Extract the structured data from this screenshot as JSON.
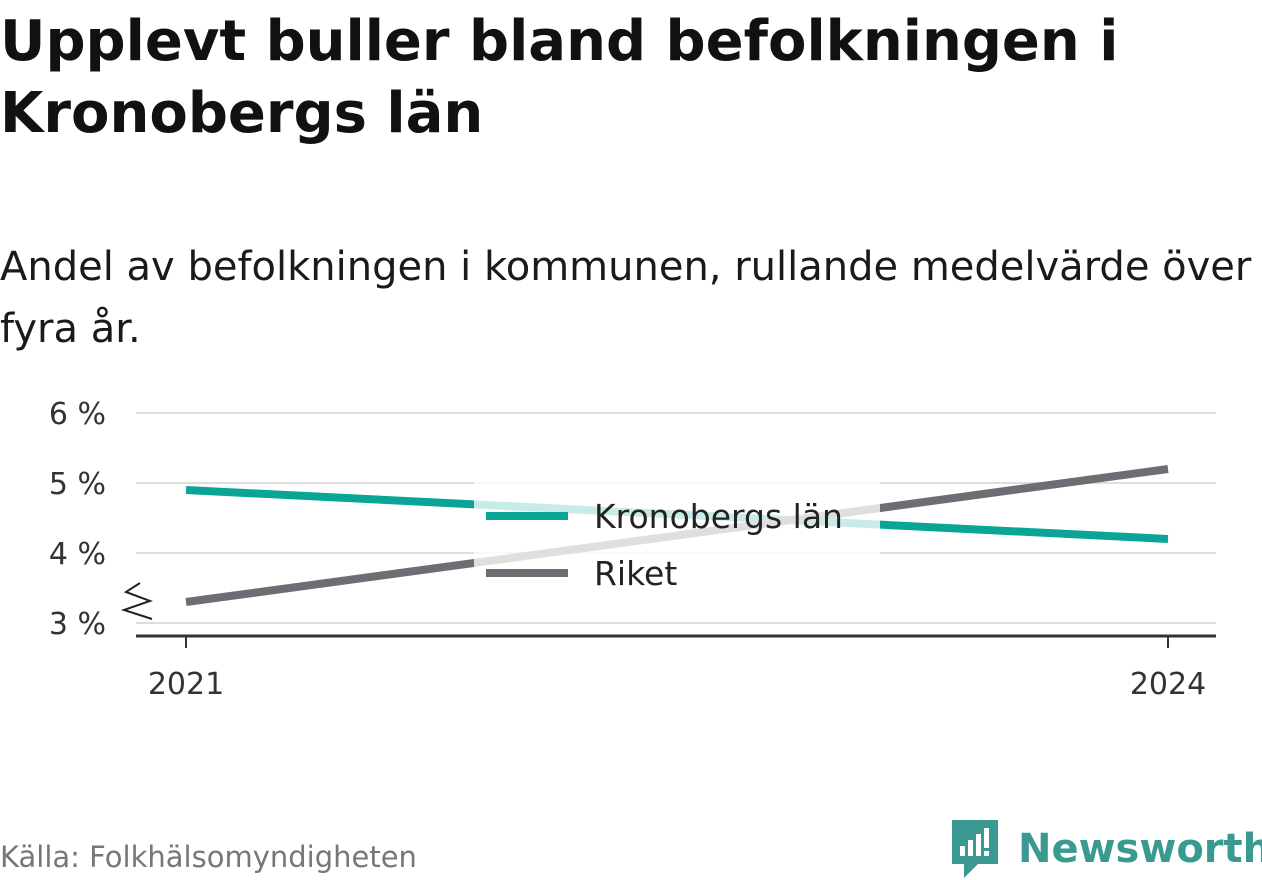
{
  "title": "Upplevt buller bland befolkningen i Kronobergs län",
  "subtitle": "Andel av befolkningen i kommunen, rullande medelvärde över fyra år.",
  "source": "Källa: Folkhälsomyndigheten",
  "brand": {
    "name": "Newsworthy",
    "icon": "newsworthy-logo-icon",
    "color": "#3a9a91"
  },
  "chart_data": {
    "type": "line",
    "x": [
      2021,
      2024
    ],
    "x_ticks": [
      "2021",
      "2024"
    ],
    "y_ticks": [
      3,
      4,
      5,
      6
    ],
    "y_tick_labels": [
      "3 %",
      "4 %",
      "5 %",
      "6 %"
    ],
    "ylim": [
      3,
      6
    ],
    "y_axis_break": true,
    "grid": true,
    "legend_position": "center",
    "series": [
      {
        "name": "Kronobergs län",
        "color": "#0aa596",
        "values": [
          4.9,
          4.2
        ]
      },
      {
        "name": "Riket",
        "color": "#6e6d74",
        "values": [
          3.3,
          5.2
        ]
      }
    ]
  }
}
